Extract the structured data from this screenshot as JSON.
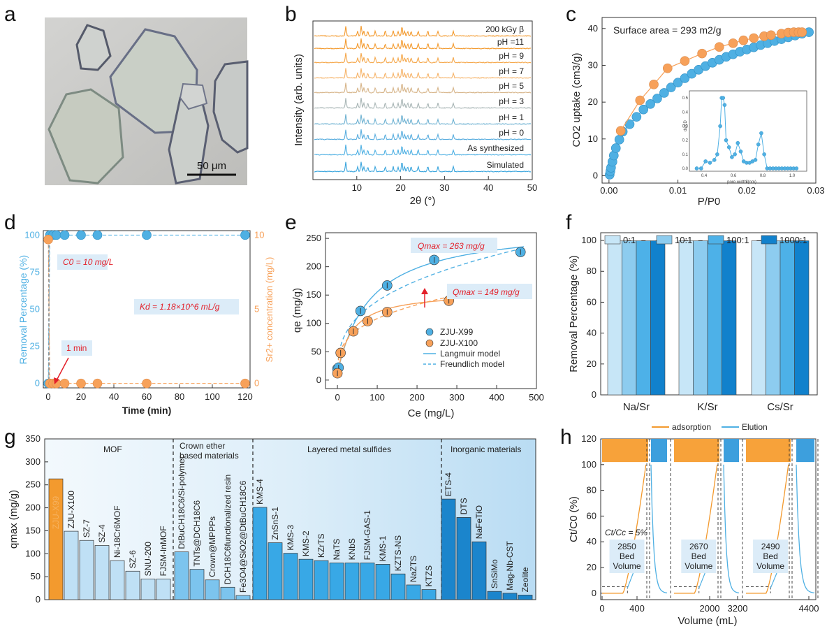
{
  "panel_labels": [
    "a",
    "b",
    "c",
    "d",
    "e",
    "f",
    "g",
    "h"
  ],
  "panel_a": {
    "scale_bar": "50 μm"
  },
  "colors": {
    "blue": "#4fb0e3",
    "orange": "#f7a15a",
    "orange_dark": "#f39a2e",
    "red": "#e3202a",
    "light_blue_box": "#dcecf8"
  },
  "chart_data": [
    {
      "panel": "b",
      "type": "line",
      "xlabel": "2θ (°)",
      "ylabel": "Intensity (arb. units)",
      "xlim": [
        0,
        50
      ],
      "xticks": [
        10,
        20,
        30,
        40,
        50
      ],
      "series": [
        {
          "name": "200 kGy β",
          "color": "#f39a2e"
        },
        {
          "name": "pH =11",
          "color": "#f39a2e"
        },
        {
          "name": "pH = 9",
          "color": "#f5a84c"
        },
        {
          "name": "pH = 7",
          "color": "#f6b46a"
        },
        {
          "name": "pH = 5",
          "color": "#d7b58a"
        },
        {
          "name": "pH = 3",
          "color": "#a9b6b6"
        },
        {
          "name": "pH = 1",
          "color": "#6fb2d2"
        },
        {
          "name": "pH = 0",
          "color": "#5aaedf"
        },
        {
          "name": "As synthesized",
          "color": "#4fb0e3"
        },
        {
          "name": "Simulated",
          "color": "#3aa5dd"
        }
      ],
      "peaks_2theta": [
        7.5,
        10.2,
        11.0,
        11.6,
        12.5,
        14.2,
        16.5,
        18.3,
        19.4,
        20.3,
        20.9,
        21.6,
        22.4,
        24.0,
        26.2,
        28.5,
        32.0
      ]
    },
    {
      "panel": "c",
      "type": "scatter",
      "xlabel": "P/P0",
      "ylabel": "CO2 uptake (cm3/g)",
      "annotation": "Surface area = 293 m2/g",
      "xlim": [
        -0.001,
        0.03
      ],
      "ylim": [
        -2,
        43
      ],
      "xticks": [
        0.0,
        0.01,
        0.02,
        0.03
      ],
      "yticks": [
        0,
        10,
        20,
        30,
        40
      ],
      "series": [
        {
          "name": "adsorption",
          "color": "#4fb0e3",
          "x": [
            0.0001,
            0.0002,
            0.0003,
            0.0005,
            0.0007,
            0.001,
            0.0015,
            0.002,
            0.003,
            0.004,
            0.005,
            0.006,
            0.007,
            0.008,
            0.009,
            0.01,
            0.011,
            0.012,
            0.013,
            0.014,
            0.015,
            0.016,
            0.017,
            0.018,
            0.019,
            0.02,
            0.021,
            0.022,
            0.023,
            0.024,
            0.025,
            0.026,
            0.027,
            0.028,
            0.029
          ],
          "y": [
            0.3,
            1.2,
            2.2,
            3.8,
            5.5,
            7.5,
            9.8,
            12,
            14,
            16,
            18,
            19.5,
            21,
            22.5,
            24,
            25.3,
            26.5,
            27.7,
            28.8,
            29.8,
            30.7,
            31.5,
            32.3,
            33,
            33.7,
            34.3,
            34.9,
            35.5,
            36,
            36.6,
            37.1,
            37.6,
            38.1,
            38.6,
            39
          ]
        },
        {
          "name": "desorption",
          "color": "#f7a15a",
          "x": [
            0.0017,
            0.0045,
            0.0065,
            0.0085,
            0.011,
            0.0135,
            0.016,
            0.018,
            0.0195,
            0.021,
            0.0225,
            0.0235,
            0.025,
            0.026,
            0.0268,
            0.0275,
            0.028
          ],
          "y": [
            12.2,
            20.5,
            24.8,
            29.2,
            31.2,
            33.2,
            35,
            36,
            36.8,
            37.4,
            37.9,
            38.2,
            38.6,
            38.9,
            39,
            39,
            39
          ]
        }
      ],
      "inset": {
        "xlabel": "pore width (nm)",
        "ylabel": "dv/dD",
        "xlim": [
          0.3,
          1.1
        ],
        "ylim": [
          -0.02,
          0.55
        ],
        "xticks": [
          0.4,
          0.6,
          0.8,
          1.0
        ],
        "yticks": [
          0.0,
          0.1,
          0.2,
          0.3,
          0.4,
          0.5
        ],
        "x": [
          0.35,
          0.38,
          0.41,
          0.44,
          0.47,
          0.49,
          0.51,
          0.52,
          0.53,
          0.54,
          0.55,
          0.57,
          0.59,
          0.61,
          0.63,
          0.65,
          0.67,
          0.69,
          0.71,
          0.73,
          0.75,
          0.77,
          0.79,
          0.81,
          0.83,
          0.85,
          0.87,
          0.89,
          0.91,
          0.93,
          0.95,
          0.97,
          0.99,
          1.01,
          1.03
        ],
        "y": [
          0.0,
          0.0,
          0.05,
          0.04,
          0.06,
          0.1,
          0.3,
          0.5,
          0.5,
          0.45,
          0.2,
          0.15,
          0.08,
          0.1,
          0.18,
          0.12,
          0.05,
          0.04,
          0.04,
          0.05,
          0.06,
          0.17,
          0.25,
          0.1,
          0.0,
          0.0,
          0.0,
          0.0,
          0.0,
          0.0,
          0.0,
          0.0,
          0.0,
          0.0,
          0.0
        ]
      }
    },
    {
      "panel": "d",
      "type": "scatter",
      "xlabel": "Time (min)",
      "ylabel": "Removal Percentage (%)",
      "y2label": "Sr2+ concentration (mg/L)",
      "xlim": [
        -3,
        123
      ],
      "ylim": [
        -3,
        103
      ],
      "y2lim": [
        -0.3,
        10.3
      ],
      "xticks": [
        0,
        20,
        40,
        60,
        80,
        100,
        120
      ],
      "yticks": [
        0,
        25,
        50,
        75,
        100
      ],
      "y2ticks": [
        0,
        5,
        10
      ],
      "annotations": [
        "C0 = 10 mg/L",
        "Kd = 1.18×10^6 mL/g",
        "1 min"
      ],
      "series": [
        {
          "name": "Removal",
          "color": "#4fb0e3",
          "x": [
            0,
            1,
            3,
            5,
            10,
            20,
            30,
            60,
            120
          ],
          "y": [
            0,
            100,
            100,
            100,
            100,
            100,
            100,
            100,
            100
          ]
        },
        {
          "name": "Sr2+",
          "color": "#f7a15a",
          "x": [
            0,
            1,
            3,
            5,
            10,
            20,
            30,
            60,
            120
          ],
          "y": [
            9.7,
            0,
            0,
            0,
            0,
            0,
            0,
            0,
            0
          ]
        }
      ]
    },
    {
      "panel": "e",
      "type": "scatter",
      "xlabel": "Ce (mg/L)",
      "ylabel": "qe (mg/g)",
      "xlim": [
        -30,
        500
      ],
      "ylim": [
        -15,
        260
      ],
      "xticks": [
        0,
        100,
        200,
        300,
        400,
        500
      ],
      "yticks": [
        0,
        50,
        100,
        150,
        200,
        250
      ],
      "annotations": [
        "Qmax = 263 mg/g",
        "Qmax = 149 mg/g"
      ],
      "legend": [
        "ZJU-X99",
        "ZJU-X100",
        "Langmuir model",
        "Freundlich model"
      ],
      "series": [
        {
          "name": "ZJU-X99",
          "color": "#4fb0e3",
          "x": [
            0,
            3,
            58,
            125,
            243,
            460
          ],
          "y": [
            20,
            22,
            122,
            167,
            212,
            226
          ]
        },
        {
          "name": "ZJU-X100",
          "color": "#f7a15a",
          "x": [
            0,
            8,
            40,
            76,
            125,
            280
          ],
          "y": [
            12,
            48,
            86,
            104,
            120,
            140
          ]
        }
      ]
    },
    {
      "panel": "f",
      "type": "bar",
      "ylabel": "Removal Percentage (%)",
      "ylim": [
        0,
        105
      ],
      "yticks": [
        0,
        20,
        40,
        60,
        80,
        100
      ],
      "categories": [
        "Na/Sr",
        "K/Sr",
        "Cs/Sr"
      ],
      "series": [
        {
          "name": "0:1",
          "color": "#c7e6f7",
          "values": [
            99.8,
            99.8,
            99.8
          ]
        },
        {
          "name": "10:1",
          "color": "#8dccef",
          "values": [
            99.8,
            99.8,
            99.8
          ]
        },
        {
          "name": "100:1",
          "color": "#4db1e8",
          "values": [
            99.8,
            99.8,
            99.8
          ]
        },
        {
          "name": "1000:1",
          "color": "#1181cc",
          "values": [
            99.8,
            99.8,
            99.8
          ]
        }
      ]
    },
    {
      "panel": "g",
      "type": "bar",
      "ylabel": "qmax (mg/g)",
      "ylim": [
        0,
        350
      ],
      "yticks": [
        0,
        50,
        100,
        150,
        200,
        250,
        300,
        350
      ],
      "groups": [
        "MOF",
        "Crown ether based materials",
        "Layered metal sulfides",
        "Inorganic materials"
      ],
      "categories": [
        "ZJU-X99",
        "ZJU-X100",
        "SZ-7",
        "SZ-4",
        "Ni-18Cr6MOF",
        "SZ-6",
        "SNU-200",
        "FJSM-InMOF",
        "DtBuCH18C6/Si-polymer",
        "TNTs@DCH18C6",
        "Crown@MPPPs",
        "DCH18C6functionalized resin",
        "Fe3O4@SiO2@DtBuCH18C6",
        "KMS-4",
        "ZnSnS-1",
        "KMS-3",
        "KMS-2",
        "KZrTS",
        "NaTS",
        "KNbS",
        "FJSM-GAS-1",
        "KMS-1",
        "KZTS-NS",
        "NaZTS",
        "KTZS",
        "ETS-4",
        "DTS",
        "NaFeTiO",
        "SnSiMo",
        "Mag-Nb-CST",
        "Zeolite"
      ],
      "values": [
        263,
        149,
        129,
        118,
        85,
        62,
        45,
        45,
        104,
        66,
        43,
        27,
        9,
        201,
        124,
        101,
        88,
        85,
        80,
        80,
        80,
        77,
        56,
        32,
        22,
        219,
        179,
        126,
        18,
        14,
        10
      ]
    },
    {
      "panel": "h",
      "type": "line",
      "xlabel": "Volume (mL)",
      "ylabel": "Ct/C0 (%)",
      "legend": [
        "adsorption",
        "Elution"
      ],
      "ylim": [
        -5,
        120
      ],
      "yticks": [
        0,
        20,
        40,
        60,
        80,
        100,
        120
      ],
      "xticks": [
        "0",
        "400",
        "2000",
        "3200",
        "4400"
      ],
      "annotations": [
        "Ct/Cc = 5%",
        "2850 Bed Volume",
        "2670 Bed Volume",
        "2490 Bed Volume"
      ]
    }
  ]
}
